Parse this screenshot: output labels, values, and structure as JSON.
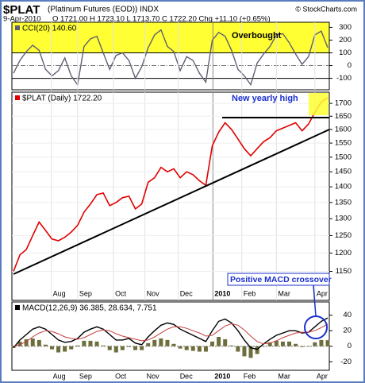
{
  "header": {
    "symbol": "$PLAT",
    "name": "(Platinum Futures (EOD)) INDX",
    "source": "© StockCharts.com",
    "date": "9-Apr-2010",
    "quote": "O 1721.00 H 1723.10 L 1713.70 C 1722.20 Chg +11.10 (+0.65%)"
  },
  "chart_data": [
    {
      "type": "line",
      "legend": "CCI(20) 140.60",
      "annotation": "Overbought",
      "overbought": 100,
      "oversold": -100,
      "categories": [
        null,
        null,
        null,
        null,
        null,
        null,
        null,
        null,
        null,
        null,
        null,
        null,
        null,
        null,
        null,
        null,
        null,
        null,
        null,
        null,
        null,
        null,
        null,
        null,
        null,
        null,
        null,
        null,
        null,
        null,
        null,
        null,
        null,
        null,
        null,
        null,
        null,
        null,
        null,
        null,
        null,
        null,
        null,
        null,
        null,
        null,
        null,
        null,
        null,
        null
      ],
      "ylim": [
        -190,
        340
      ],
      "yticks": [
        300,
        200,
        100,
        0,
        -100
      ],
      "series": [
        {
          "name": "CCI(20)",
          "color": "#5f5f73",
          "values": [
            -60,
            40,
            110,
            160,
            120,
            -30,
            -80,
            -40,
            60,
            -80,
            -150,
            150,
            210,
            230,
            100,
            -30,
            80,
            100,
            40,
            -100,
            -10,
            140,
            240,
            280,
            150,
            110,
            -40,
            70,
            40,
            -60,
            -130,
            200,
            260,
            230,
            120,
            -30,
            -80,
            -150,
            20,
            90,
            150,
            240,
            250,
            180,
            90,
            10,
            70,
            240,
            270,
            140.6
          ]
        }
      ]
    },
    {
      "type": "line",
      "legend": "$PLAT (Daily) 1722.20",
      "annotation": "New yearly high",
      "log": true,
      "categories": [
        null,
        null,
        null,
        null,
        null,
        null,
        null,
        null,
        null,
        null,
        null,
        null,
        null,
        null,
        null,
        null,
        null,
        null,
        null,
        null,
        null,
        null,
        null,
        null,
        null,
        null,
        null,
        null,
        null,
        null,
        null,
        null,
        null,
        null,
        null,
        null,
        null,
        null,
        null,
        null,
        null,
        null,
        null,
        null,
        null,
        null,
        null,
        null,
        null,
        null
      ],
      "xticks": [
        {
          "value": 5.9,
          "label": "Aug"
        },
        {
          "value": 10,
          "label": "Sep"
        },
        {
          "value": 15.6,
          "label": "Oct"
        },
        {
          "value": 20.5,
          "label": "Nov"
        },
        {
          "value": 25.7,
          "label": "Dec"
        },
        {
          "value": 31.1,
          "label": "2010"
        },
        {
          "value": 35.6,
          "label": "Feb"
        },
        {
          "value": 41,
          "label": "Mar"
        },
        {
          "value": 47,
          "label": "Apr"
        }
      ],
      "ylim": [
        1075,
        1745
      ],
      "yticks": [
        1700,
        1650,
        1600,
        1550,
        1500,
        1450,
        1400,
        1350,
        1300,
        1250,
        1200,
        1150
      ],
      "series": [
        {
          "name": "$PLAT (Daily)",
          "color": "#e00000",
          "values": [
            1150,
            1195,
            1210,
            1250,
            1290,
            1265,
            1240,
            1235,
            1245,
            1260,
            1280,
            1320,
            1345,
            1375,
            1380,
            1340,
            1350,
            1365,
            1370,
            1330,
            1345,
            1415,
            1430,
            1465,
            1450,
            1460,
            1430,
            1450,
            1440,
            1420,
            1405,
            1540,
            1590,
            1625,
            1600,
            1565,
            1530,
            1505,
            1530,
            1555,
            1570,
            1595,
            1605,
            1615,
            1625,
            1595,
            1620,
            1665,
            1705,
            1722.2
          ]
        }
      ]
    },
    {
      "type": "line",
      "legend": "MACD(12,26,9) 36.385, 28.634, 7.751",
      "annotation": "Positive MACD crossover",
      "categories": [
        null,
        null,
        null,
        null,
        null,
        null,
        null,
        null,
        null,
        null,
        null,
        null,
        null,
        null,
        null,
        null,
        null,
        null,
        null,
        null,
        null,
        null,
        null,
        null,
        null,
        null,
        null,
        null,
        null,
        null,
        null,
        null,
        null,
        null,
        null,
        null,
        null,
        null,
        null,
        null,
        null,
        null,
        null,
        null,
        null,
        null,
        null,
        null,
        null,
        null
      ],
      "ylim": [
        -31,
        57
      ],
      "yticks": [
        40,
        20,
        0,
        -20
      ],
      "series": [
        {
          "name": "Histogram",
          "type": "bar",
          "color": "#6e6e3c",
          "values": [
            -2,
            6,
            9,
            10,
            8,
            2,
            -4,
            -8,
            -7,
            -4,
            1,
            7,
            7,
            6,
            1,
            -5,
            -8,
            -5,
            -1,
            -5,
            -5,
            4,
            8,
            10,
            8,
            3,
            -3,
            -5,
            -6,
            -7,
            -7,
            6,
            12,
            9,
            1,
            -7,
            -13,
            -15,
            -10,
            0,
            5,
            7,
            6,
            6,
            3,
            -1,
            0,
            5,
            8,
            7.751
          ]
        },
        {
          "name": "MACD",
          "color": "#000000",
          "values": [
            -2,
            8,
            15,
            22,
            25,
            22,
            15,
            8,
            5,
            6,
            10,
            18,
            22,
            25,
            22,
            15,
            8,
            8,
            10,
            4,
            2,
            12,
            20,
            27,
            30,
            28,
            22,
            18,
            14,
            10,
            6,
            20,
            32,
            35,
            30,
            20,
            8,
            -2,
            -4,
            3,
            9,
            14,
            17,
            20,
            20,
            17,
            18,
            25,
            32,
            36.385
          ]
        },
        {
          "name": "Signal",
          "color": "#c83c3c",
          "values": [
            0,
            2,
            6,
            12,
            17,
            20,
            19,
            16,
            12,
            10,
            9,
            11,
            15,
            19,
            21,
            20,
            16,
            13,
            11,
            9,
            7,
            8,
            12,
            17,
            22,
            25,
            25,
            23,
            20,
            17,
            13,
            14,
            20,
            26,
            29,
            27,
            21,
            13,
            6,
            3,
            4,
            7,
            11,
            14,
            17,
            18,
            18,
            20,
            24,
            28.634
          ]
        }
      ]
    }
  ]
}
